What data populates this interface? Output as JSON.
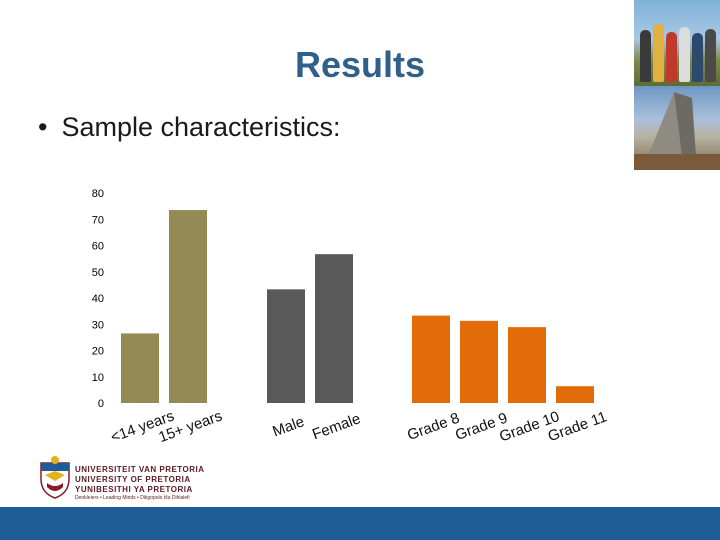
{
  "slide": {
    "title": "Results",
    "bullet_text": "Sample characteristics:"
  },
  "logo": {
    "line1": "UNIVERSITEIT VAN PRETORIA",
    "line2": "UNIVERSITY OF PRETORIA",
    "line3": "YUNIBESITHI YA PRETORIA",
    "tagline": "Denkleiers • Leading Minds • Dikgopolo tša Dihlalefi"
  },
  "chart_data": {
    "type": "bar",
    "yticks": [
      0,
      10,
      20,
      30,
      40,
      50,
      60,
      70,
      80
    ],
    "ylim": [
      0,
      80
    ],
    "grid": false,
    "groups": [
      {
        "color": "#938a55",
        "bars": [
          {
            "label": "<14 years",
            "value": 26.5
          },
          {
            "label": "15+ years",
            "value": 73.5
          }
        ]
      },
      {
        "color": "#595959",
        "bars": [
          {
            "label": "Male",
            "value": 43.3
          },
          {
            "label": "Female",
            "value": 56.7
          }
        ]
      },
      {
        "color": "#e36c0a",
        "bars": [
          {
            "label": "Grade 8",
            "value": 33.3
          },
          {
            "label": "Grade 9",
            "value": 31.3
          },
          {
            "label": "Grade 10",
            "value": 28.9
          },
          {
            "label": "Grade 11",
            "value": 6.4
          }
        ]
      }
    ]
  }
}
